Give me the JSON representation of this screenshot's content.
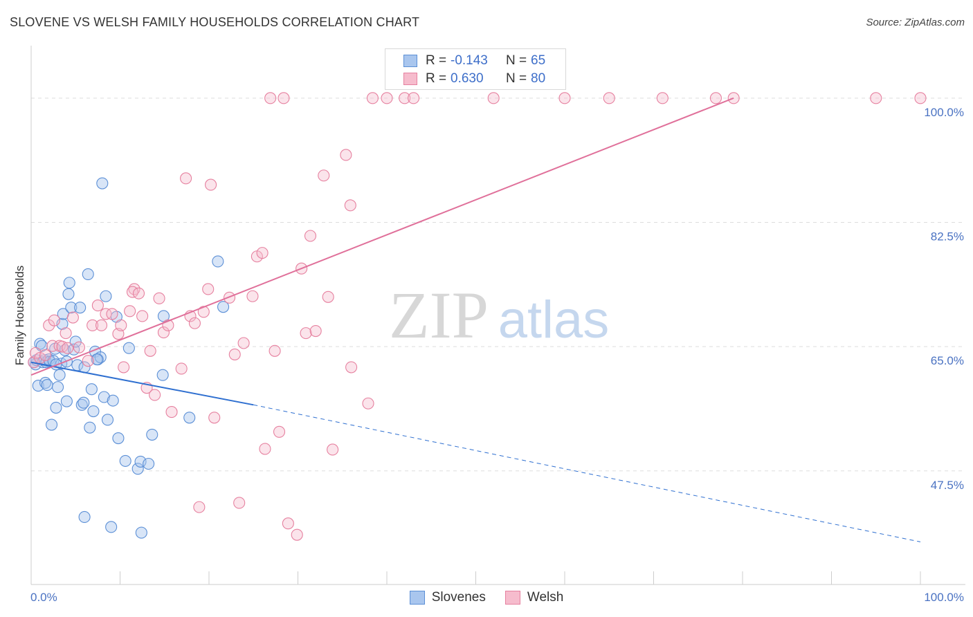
{
  "title": "SLOVENE VS WELSH FAMILY HOUSEHOLDS CORRELATION CHART",
  "source": "Source: ZipAtlas.com",
  "watermark": {
    "zip": "ZIP",
    "atlas": "atlas"
  },
  "legend": {
    "series1": {
      "r_label": "R =",
      "r_value": "-0.143",
      "n_label": "N =",
      "n_value": "65"
    },
    "series2": {
      "r_label": "R =",
      "r_value": "0.630",
      "n_label": "N =",
      "n_value": "80"
    }
  },
  "colors": {
    "blue_fill": "#a9c6ee",
    "blue_stroke": "#5b8fd6",
    "blue_line": "#2e6fd0",
    "pink_fill": "#f6bccd",
    "pink_stroke": "#e6809f",
    "pink_line": "#e0709a",
    "grid": "#dddddd",
    "tick_text": "#4a72c2"
  },
  "chart_data": {
    "type": "scatter",
    "title": "SLOVENE VS WELSH FAMILY HOUSEHOLDS CORRELATION CHART",
    "xlabel": "",
    "ylabel": "Family Households",
    "xlim": [
      0,
      100
    ],
    "ylim": [
      31.5,
      107
    ],
    "x_tick_labels": [
      "0.0%",
      "100.0%"
    ],
    "y_ticks": [
      47.5,
      65.0,
      82.5,
      100.0
    ],
    "y_tick_labels": [
      "47.5%",
      "65.0%",
      "82.5%",
      "100.0%"
    ],
    "grid": true,
    "series": [
      {
        "name": "Slovenes",
        "r": -0.143,
        "n": 65,
        "trend": {
          "x0": 0,
          "y0": 62.8,
          "x1": 25,
          "y1": 56.8,
          "dash_to_x": 100,
          "dash_to_y": 37.5
        },
        "points": [
          [
            0.3,
            62.8
          ],
          [
            0.5,
            62.5
          ],
          [
            0.6,
            63.1
          ],
          [
            0.8,
            59.5
          ],
          [
            1.0,
            65.4
          ],
          [
            1.2,
            65.1
          ],
          [
            1.3,
            62.8
          ],
          [
            1.5,
            63.1
          ],
          [
            1.6,
            59.9
          ],
          [
            1.7,
            62.8
          ],
          [
            1.8,
            59.6
          ],
          [
            2.0,
            63.2
          ],
          [
            2.1,
            62.9
          ],
          [
            2.3,
            54.0
          ],
          [
            2.5,
            63.0
          ],
          [
            2.7,
            64.7
          ],
          [
            2.8,
            56.4
          ],
          [
            3.0,
            59.3
          ],
          [
            3.2,
            61.0
          ],
          [
            3.4,
            62.6
          ],
          [
            3.5,
            68.2
          ],
          [
            3.6,
            69.6
          ],
          [
            3.8,
            64.5
          ],
          [
            4.0,
            57.3
          ],
          [
            4.2,
            72.4
          ],
          [
            4.3,
            74.0
          ],
          [
            4.5,
            70.5
          ],
          [
            4.8,
            64.6
          ],
          [
            5.0,
            65.7
          ],
          [
            5.2,
            62.4
          ],
          [
            5.5,
            70.5
          ],
          [
            5.7,
            56.8
          ],
          [
            5.9,
            57.1
          ],
          [
            6.0,
            62.1
          ],
          [
            6.4,
            75.2
          ],
          [
            6.6,
            53.6
          ],
          [
            6.8,
            59.0
          ],
          [
            7.0,
            55.9
          ],
          [
            7.2,
            64.3
          ],
          [
            7.5,
            63.2
          ],
          [
            7.8,
            63.5
          ],
          [
            8.0,
            88.0
          ],
          [
            8.2,
            57.9
          ],
          [
            8.4,
            72.1
          ],
          [
            8.6,
            54.7
          ],
          [
            9.2,
            57.4
          ],
          [
            9.6,
            69.2
          ],
          [
            9.8,
            52.1
          ],
          [
            10.6,
            48.9
          ],
          [
            11.0,
            64.8
          ],
          [
            12.0,
            47.8
          ],
          [
            12.3,
            48.8
          ],
          [
            13.2,
            48.5
          ],
          [
            13.6,
            52.6
          ],
          [
            14.8,
            61.0
          ],
          [
            14.9,
            69.3
          ],
          [
            17.8,
            55.0
          ],
          [
            21.0,
            77.0
          ],
          [
            21.6,
            70.6
          ],
          [
            6.0,
            41.0
          ],
          [
            9.0,
            39.6
          ],
          [
            12.4,
            38.8
          ],
          [
            7.4,
            63.2
          ],
          [
            4.0,
            62.9
          ],
          [
            2.8,
            62.5
          ]
        ]
      },
      {
        "name": "Welsh",
        "r": 0.63,
        "n": 80,
        "trend": {
          "x0": 0,
          "y0": 61.0,
          "x1": 79,
          "y1": 100.0
        },
        "points": [
          [
            0.3,
            62.8
          ],
          [
            0.5,
            64.1
          ],
          [
            1.0,
            63.4
          ],
          [
            1.6,
            63.8
          ],
          [
            2.0,
            68.0
          ],
          [
            2.4,
            65.1
          ],
          [
            2.6,
            68.7
          ],
          [
            3.2,
            65.1
          ],
          [
            3.5,
            65.0
          ],
          [
            3.9,
            66.9
          ],
          [
            4.1,
            64.8
          ],
          [
            4.7,
            69.1
          ],
          [
            5.4,
            64.9
          ],
          [
            6.4,
            63.0
          ],
          [
            6.9,
            68.0
          ],
          [
            7.5,
            70.8
          ],
          [
            7.9,
            68.0
          ],
          [
            8.4,
            69.6
          ],
          [
            9.1,
            69.6
          ],
          [
            9.8,
            66.8
          ],
          [
            10.1,
            68.0
          ],
          [
            10.4,
            62.1
          ],
          [
            11.1,
            70.0
          ],
          [
            11.6,
            73.1
          ],
          [
            11.4,
            72.7
          ],
          [
            12.1,
            72.5
          ],
          [
            12.5,
            69.3
          ],
          [
            13.0,
            59.2
          ],
          [
            13.4,
            64.4
          ],
          [
            13.9,
            58.2
          ],
          [
            14.4,
            71.8
          ],
          [
            14.9,
            67.0
          ],
          [
            15.4,
            68.0
          ],
          [
            15.8,
            55.8
          ],
          [
            16.9,
            61.9
          ],
          [
            17.4,
            88.7
          ],
          [
            17.9,
            69.3
          ],
          [
            18.4,
            68.3
          ],
          [
            18.9,
            42.4
          ],
          [
            19.4,
            69.9
          ],
          [
            19.9,
            73.1
          ],
          [
            20.2,
            87.8
          ],
          [
            20.6,
            55.0
          ],
          [
            22.3,
            71.9
          ],
          [
            22.9,
            63.9
          ],
          [
            23.4,
            43.0
          ],
          [
            23.9,
            65.5
          ],
          [
            24.9,
            72.1
          ],
          [
            25.4,
            77.7
          ],
          [
            26.3,
            50.6
          ],
          [
            26.0,
            78.2
          ],
          [
            26.9,
            100.0
          ],
          [
            27.4,
            64.4
          ],
          [
            27.9,
            53.0
          ],
          [
            28.4,
            100.0
          ],
          [
            28.9,
            40.1
          ],
          [
            29.9,
            38.5
          ],
          [
            30.4,
            76.0
          ],
          [
            30.9,
            66.9
          ],
          [
            31.4,
            80.6
          ],
          [
            32.0,
            67.2
          ],
          [
            32.9,
            89.1
          ],
          [
            33.4,
            72.0
          ],
          [
            33.9,
            50.5
          ],
          [
            35.4,
            92.0
          ],
          [
            35.9,
            84.9
          ],
          [
            36.0,
            62.1
          ],
          [
            37.9,
            57.0
          ],
          [
            38.4,
            100.0
          ],
          [
            40.0,
            100.0
          ],
          [
            42.0,
            100.0
          ],
          [
            43.0,
            100.0
          ],
          [
            52.0,
            100.0
          ],
          [
            60.0,
            100.0
          ],
          [
            65.0,
            100.0
          ],
          [
            71.0,
            100.0
          ],
          [
            77.0,
            100.0
          ],
          [
            79.0,
            100.0
          ],
          [
            95.0,
            100.0
          ],
          [
            100.0,
            100.0
          ]
        ]
      }
    ]
  }
}
